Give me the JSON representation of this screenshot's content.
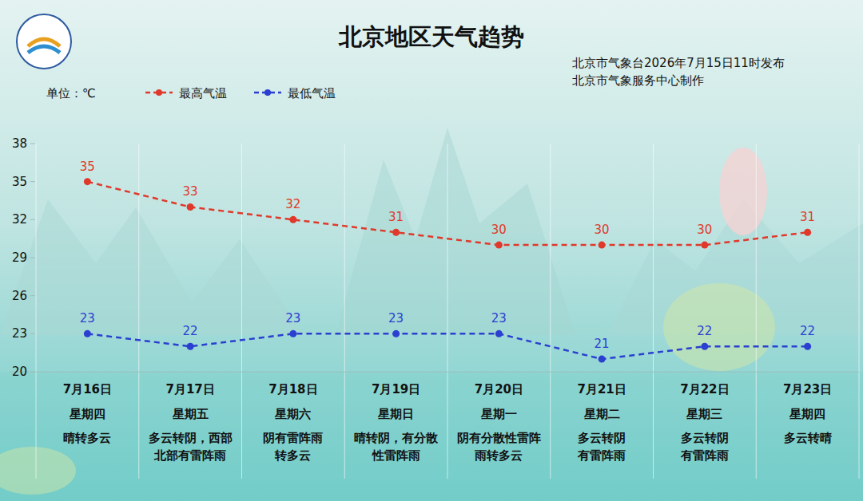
{
  "chart_data": {
    "type": "line",
    "title": "北京地区天气趋势",
    "issuer": [
      "北京市气象台2026年7月15日11时发布",
      "北京市气象服务中心制作"
    ],
    "unit_label": "单位：℃",
    "categories": [
      "7月16日",
      "7月17日",
      "7月18日",
      "7月19日",
      "7月20日",
      "7月21日",
      "7月22日",
      "7月23日"
    ],
    "weekdays": [
      "星期四",
      "星期五",
      "星期六",
      "星期日",
      "星期一",
      "星期二",
      "星期三",
      "星期四"
    ],
    "weather": [
      [
        "晴转多云"
      ],
      [
        "多云转阴，西部",
        "北部有雷阵雨"
      ],
      [
        "阴有雷阵雨",
        "转多云"
      ],
      [
        "晴转阴，有分散",
        "性雷阵雨"
      ],
      [
        "阴有分散性雷阵",
        "雨转多云"
      ],
      [
        "多云转阴",
        "有雷阵雨"
      ],
      [
        "多云转阴",
        "有雷阵雨"
      ],
      [
        "多云转晴"
      ]
    ],
    "series": [
      {
        "name": "最高气温",
        "color": "#e0392b",
        "marker": "circle",
        "line_style": "dashed",
        "values": [
          35,
          33,
          32,
          31,
          30,
          30,
          30,
          31
        ]
      },
      {
        "name": "最低气温",
        "color": "#2b3fd0",
        "marker": "circle",
        "line_style": "dashed",
        "values": [
          23,
          22,
          23,
          23,
          23,
          21,
          22,
          22
        ]
      }
    ],
    "ylim": [
      20,
      38
    ],
    "yticks": [
      20,
      23,
      26,
      29,
      32,
      35,
      38
    ],
    "grid": false,
    "legend": "top-left",
    "data_labels": true
  }
}
